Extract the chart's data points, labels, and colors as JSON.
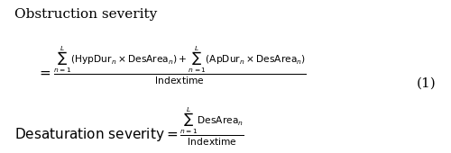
{
  "title_text": "Obstruction severity",
  "eq1_line1": "= \\frac{\\sum_{n=1}^{L}(\\mathrm{HypDur}_{n} \\times \\mathrm{DesArea}_{n}) + \\sum_{n=1}^{L}(\\mathrm{ApDur}_{n} \\times \\mathrm{DesArea}_{n})}{\\mathrm{Indextime}}",
  "eq1_number": "(1)",
  "eq2_text": "\\mathrm{Desaturation\\ severity} = \\frac{\\sum_{n=1}^{L}\\mathrm{DesArea}_{n}}{\\mathrm{Indextime}}",
  "bg_color": "#ffffff",
  "text_color": "#000000",
  "font_size_title": 11,
  "font_size_eq": 11,
  "font_size_label": 11
}
